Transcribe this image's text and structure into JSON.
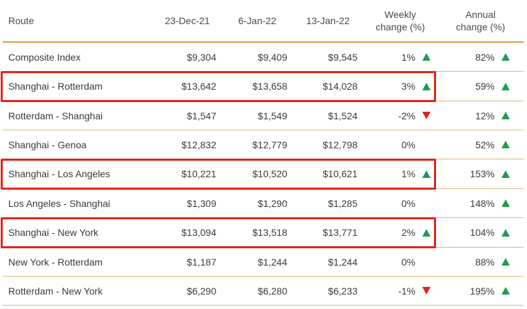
{
  "headers": {
    "route": "Route",
    "date1": "23-Dec-21",
    "date2": "6-Jan-22",
    "date3": "13-Jan-22",
    "weekly_line1": "Weekly",
    "weekly_line2": "change (%)",
    "annual_line1": "Annual",
    "annual_line2": "change (%)"
  },
  "rows": [
    {
      "route": "Composite Index",
      "d1": "$9,304",
      "d2": "$9,409",
      "d3": "$9,545",
      "weekly": "1%",
      "weekly_dir": "up",
      "annual": "82%",
      "annual_dir": "up",
      "highlighted": false
    },
    {
      "route": "Shanghai - Rotterdam",
      "d1": "$13,642",
      "d2": "$13,658",
      "d3": "$14,028",
      "weekly": "3%",
      "weekly_dir": "up",
      "annual": "59%",
      "annual_dir": "up",
      "highlighted": true
    },
    {
      "route": "Rotterdam - Shanghai",
      "d1": "$1,547",
      "d2": "$1,549",
      "d3": "$1,524",
      "weekly": "-2%",
      "weekly_dir": "down",
      "annual": "12%",
      "annual_dir": "up",
      "highlighted": false
    },
    {
      "route": "Shanghai - Genoa",
      "d1": "$12,832",
      "d2": "$12,779",
      "d3": "$12,798",
      "weekly": "0%",
      "weekly_dir": "none",
      "annual": "52%",
      "annual_dir": "up",
      "highlighted": false
    },
    {
      "route": "Shanghai - Los Angeles",
      "d1": "$10,221",
      "d2": "$10,520",
      "d3": "$10,621",
      "weekly": "1%",
      "weekly_dir": "up",
      "annual": "153%",
      "annual_dir": "up",
      "highlighted": true
    },
    {
      "route": "Los Angeles - Shanghai",
      "d1": "$1,309",
      "d2": "$1,290",
      "d3": "$1,285",
      "weekly": "0%",
      "weekly_dir": "none",
      "annual": "148%",
      "annual_dir": "up",
      "highlighted": false
    },
    {
      "route": "Shanghai - New York",
      "d1": "$13,094",
      "d2": "$13,518",
      "d3": "$13,771",
      "weekly": "2%",
      "weekly_dir": "up",
      "annual": "104%",
      "annual_dir": "up",
      "highlighted": true
    },
    {
      "route": "New York - Rotterdam",
      "d1": "$1,187",
      "d2": "$1,244",
      "d3": "$1,244",
      "weekly": "0%",
      "weekly_dir": "none",
      "annual": "88%",
      "annual_dir": "up",
      "highlighted": false
    },
    {
      "route": "Rotterdam - New York",
      "d1": "$6,290",
      "d2": "$6,280",
      "d3": "$6,233",
      "weekly": "-1%",
      "weekly_dir": "down",
      "annual": "195%",
      "annual_dir": "up",
      "highlighted": false
    }
  ],
  "colors": {
    "rule": "#c9a24a",
    "up_arrow": "#1e9d4a",
    "down_arrow": "#e0201f",
    "highlight_box": "#e3241b"
  },
  "icons": {
    "up": "triangle-up-icon",
    "down": "triangle-down-icon"
  }
}
